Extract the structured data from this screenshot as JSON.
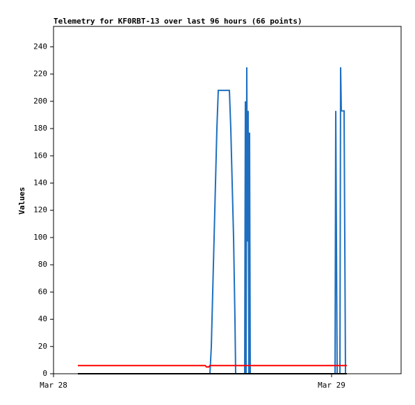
{
  "chart_data": {
    "type": "line",
    "title": "Telemetry for KF0RBT-13 over last 96 hours (66 points)",
    "ylabel": "Values",
    "xlim": [
      0,
      30
    ],
    "xticks": [
      {
        "value": 0,
        "label": "Mar 28"
      },
      {
        "value": 24,
        "label": "Mar 29"
      }
    ],
    "ylim": [
      0,
      255
    ],
    "yticks": [
      0,
      20,
      40,
      60,
      80,
      100,
      120,
      140,
      160,
      180,
      200,
      220,
      240
    ],
    "series": [
      {
        "color": "#000000",
        "x": [
          2.1,
          25.32
        ],
        "values": [
          0,
          0
        ]
      },
      {
        "color": "#ff0000",
        "x": [
          2.1,
          13.1,
          13.2,
          13.4,
          13.5,
          25.32
        ],
        "values": [
          6,
          6,
          5,
          5,
          6,
          6
        ]
      },
      {
        "color": "#1e6fbf",
        "x": [
          2.1,
          13.5,
          13.62,
          13.74,
          13.86,
          13.98,
          14.1,
          14.22,
          15.18,
          15.3,
          15.42,
          15.54,
          15.66,
          15.72,
          16.5,
          16.56,
          16.62,
          16.68,
          16.74,
          16.8,
          16.86,
          16.92,
          16.98,
          24.3,
          24.36,
          24.42,
          24.48,
          24.72,
          24.78,
          24.84,
          25.08,
          25.14,
          25.2,
          25.32
        ],
        "values": [
          0,
          0,
          20,
          60,
          100,
          140,
          180,
          208,
          208,
          180,
          140,
          100,
          40,
          0,
          0,
          200,
          0,
          225,
          97,
          193,
          0,
          177,
          0,
          0,
          193,
          97,
          0,
          0,
          225,
          193,
          193,
          97,
          0,
          0
        ]
      }
    ]
  }
}
